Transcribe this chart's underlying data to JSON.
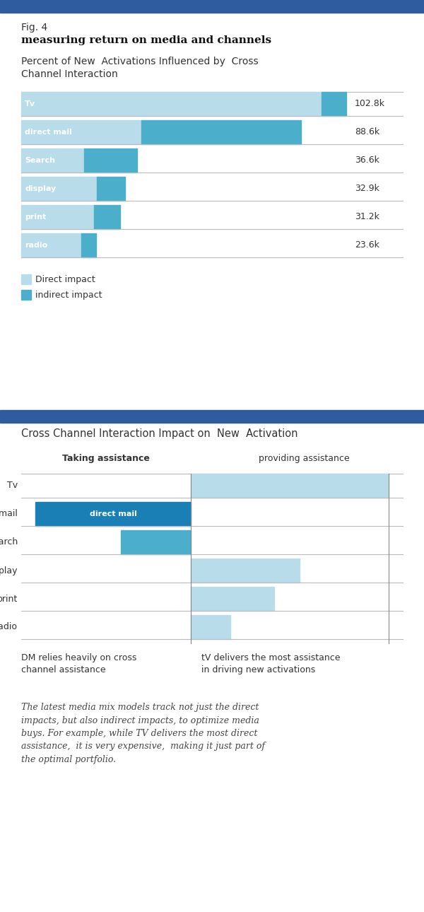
{
  "fig_label": "Fig. 4",
  "fig_title": "measuring return on media and channels",
  "section1_title": "Percent of New  Activations Influenced by  Cross\nChannel Interaction",
  "section2_title": "Cross Channel Interaction Impact on  New  Activation",
  "header_color": "#2e5c9e",
  "categories": [
    "Tv",
    "direct mail",
    "Search",
    "display",
    "print",
    "radio"
  ],
  "direct_values": [
    95.0,
    38.0,
    20.0,
    24.0,
    23.0,
    19.0
  ],
  "indirect_values": [
    7.8,
    50.6,
    16.6,
    8.9,
    8.2,
    4.6
  ],
  "totals": [
    "102.8k",
    "88.6k",
    "36.6k",
    "32.9k",
    "31.2k",
    "23.6k"
  ],
  "light_blue": "#b8dcea",
  "mid_blue": "#4baeca",
  "dark_blue": "#1a7fb5",
  "legend_direct": "Direct impact",
  "legend_indirect": "indirect impact",
  "taking_values": [
    0,
    100,
    45,
    0,
    0,
    0
  ],
  "providing_values": [
    100,
    0,
    0,
    55,
    42,
    20
  ],
  "annotation_left": "DM relies heavily on cross\nchannel assistance",
  "annotation_right": "tV delivers the most assistance\nin driving new activations",
  "body_text": "The latest media mix models track not just the direct\nimpacts, but also indirect impacts, to optimize media\nbuys. For example, while TV delivers the most direct\nassistance,  it is very expensive,  making it just part of\nthe optimal portfolio."
}
